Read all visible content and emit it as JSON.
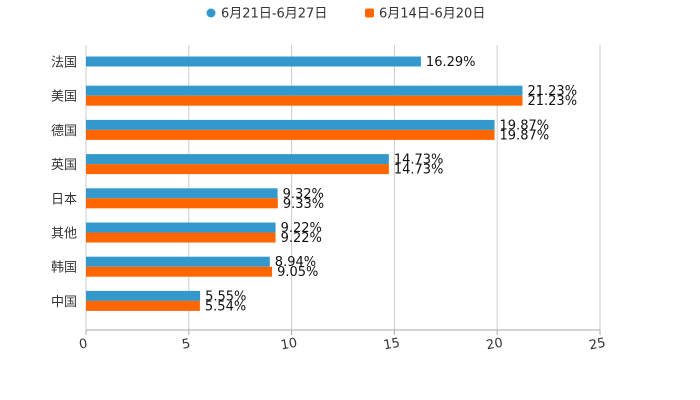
{
  "chart_data": {
    "type": "bar",
    "orientation": "horizontal",
    "categories": [
      "法国",
      "美国",
      "德国",
      "英国",
      "日本",
      "其他",
      "韩国",
      "中国"
    ],
    "series": [
      {
        "name": "6月21日-6月27日",
        "color": "#3399cc",
        "values": [
          16.29,
          21.23,
          19.87,
          14.73,
          9.32,
          9.22,
          8.94,
          5.55
        ],
        "labels": [
          "16.29%",
          "21.23%",
          "19.87%",
          "14.73%",
          "9.32%",
          "9.22%",
          "8.94%",
          "5.55%"
        ]
      },
      {
        "name": "6月14日-6月20日",
        "color": "#ff6600",
        "values": [
          null,
          21.23,
          19.87,
          14.73,
          9.33,
          9.22,
          9.05,
          5.54
        ],
        "labels": [
          null,
          "21.23%",
          "19.87%",
          "14.73%",
          "9.33%",
          "9.22%",
          "9.05%",
          "5.54%"
        ]
      }
    ],
    "xlim": [
      0,
      25
    ],
    "xticks": [
      "0",
      "5",
      "10",
      "15",
      "20",
      "25"
    ],
    "grid": true,
    "legend_position": "top-center",
    "title": "",
    "xlabel": "",
    "ylabel": ""
  }
}
